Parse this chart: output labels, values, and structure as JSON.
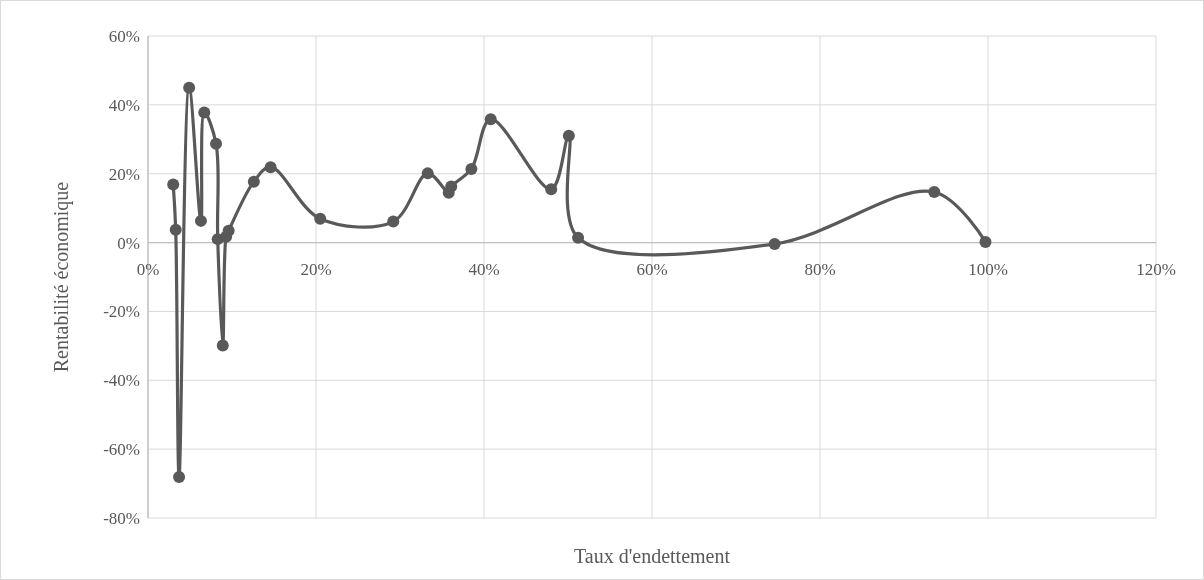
{
  "chart_data": {
    "type": "line",
    "xlabel": "Taux d'endettement",
    "ylabel": "Rentabilité économique",
    "xlim": [
      0,
      1.2
    ],
    "xticks": [
      {
        "value": 0,
        "label": "0%"
      },
      {
        "value": 0.2,
        "label": "20%"
      },
      {
        "value": 0.4,
        "label": "40%"
      },
      {
        "value": 0.6,
        "label": "60%"
      },
      {
        "value": 0.8,
        "label": "80%"
      },
      {
        "value": 1,
        "label": "100%"
      },
      {
        "value": 1.2,
        "label": "120%"
      }
    ],
    "ylim": [
      -0.8,
      0.6
    ],
    "yticks": [
      {
        "value": -0.8,
        "label": "-80%"
      },
      {
        "value": -0.6,
        "label": "-60%"
      },
      {
        "value": -0.4,
        "label": "-40%"
      },
      {
        "value": -0.2,
        "label": "-20%"
      },
      {
        "value": 0,
        "label": "0%"
      },
      {
        "value": 0.2,
        "label": "20%"
      },
      {
        "value": 0.4,
        "label": "40%"
      },
      {
        "value": 0.6,
        "label": "60%"
      }
    ],
    "grid": true,
    "marker": "circle",
    "line_style": "solid",
    "series": [
      {
        "color": "#595959",
        "x": [
          0.03,
          0.033,
          0.037,
          0.049,
          0.063,
          0.067,
          0.081,
          0.083,
          0.089,
          0.093,
          0.096,
          0.126,
          0.146,
          0.205,
          0.292,
          0.333,
          0.358,
          0.361,
          0.385,
          0.408,
          0.48,
          0.501,
          0.512,
          0.746,
          0.936,
          0.997
        ],
        "values": [
          0.169,
          0.037,
          -0.681,
          0.45,
          0.063,
          0.378,
          0.287,
          0.01,
          -0.299,
          0.017,
          0.034,
          0.177,
          0.219,
          0.069,
          0.061,
          0.201,
          0.145,
          0.163,
          0.214,
          0.358,
          0.155,
          0.31,
          0.014,
          -0.004,
          0.147,
          0.002
        ]
      }
    ]
  }
}
